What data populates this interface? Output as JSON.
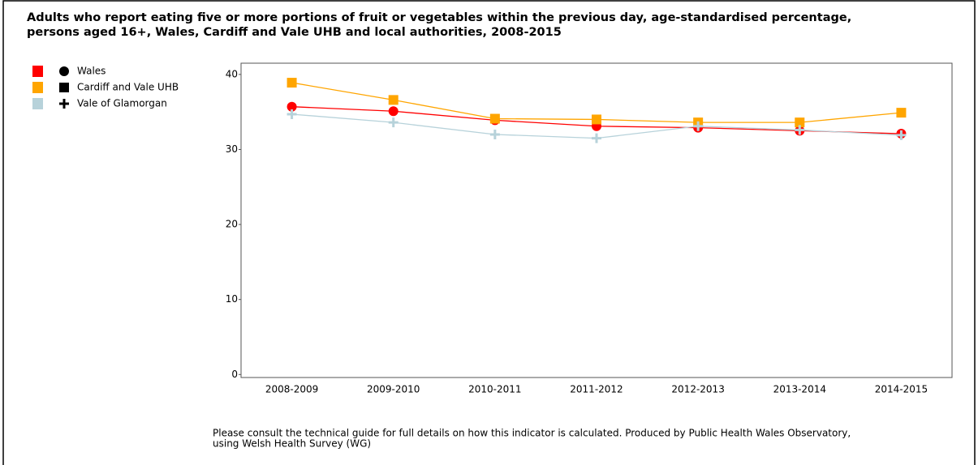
{
  "chart_data": {
    "type": "line",
    "title": [
      "Adults who report eating five or more portions of fruit or vegetables within the previous day, age-standardised percentage,",
      "persons aged 16+, Wales, Cardiff and Vale UHB and local authorities, 2008-2015"
    ],
    "categories": [
      "2008-2009",
      "2009-2010",
      "2010-2011",
      "2011-2012",
      "2012-2013",
      "2013-2014",
      "2014-2015"
    ],
    "series": [
      {
        "name": "Wales",
        "color": "#ff0000",
        "marker": "circle",
        "values": [
          35.7,
          35.1,
          33.9,
          33.1,
          32.9,
          32.5,
          32.1
        ]
      },
      {
        "name": "Cardiff and Vale UHB",
        "color": "#ffa500",
        "marker": "square",
        "values": [
          38.9,
          36.6,
          34.1,
          34.0,
          33.6,
          33.6,
          34.9
        ]
      },
      {
        "name": "Vale of Glamorgan",
        "color": "#b7d2da",
        "marker": "plus",
        "values": [
          34.7,
          33.6,
          32.0,
          31.5,
          33.1,
          32.6,
          31.9
        ]
      }
    ],
    "ylim": [
      -0.4,
      41.5
    ],
    "yticks": [
      0,
      10,
      20,
      30,
      40
    ],
    "grid": false,
    "legend": "top-left",
    "footnote": [
      "Please consult the technical guide for full details on how this indicator is calculated.  Produced by Public Health Wales Observatory,",
      "using Welsh Health Survey (WG)"
    ]
  }
}
